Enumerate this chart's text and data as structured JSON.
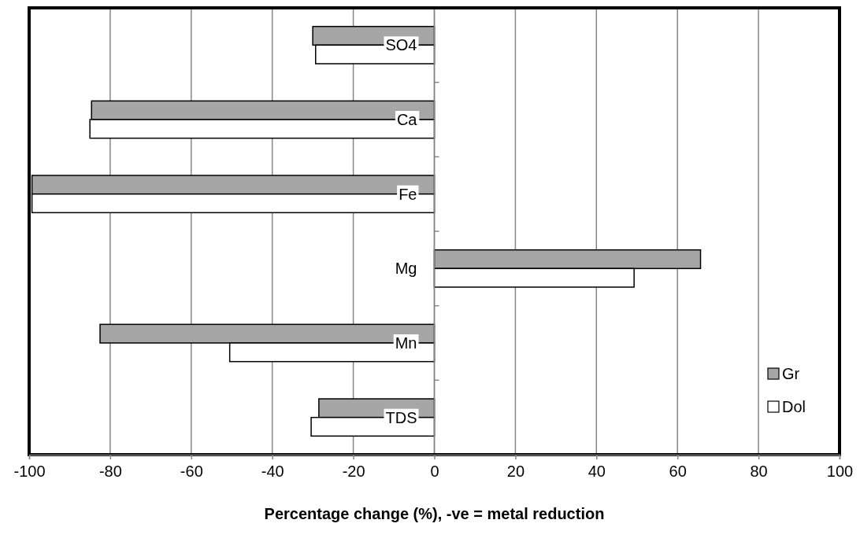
{
  "chart_data": {
    "type": "bar",
    "orientation": "horizontal",
    "xlabel": "Percentage change (%), -ve = metal reduction",
    "categories": [
      "SO4",
      "Ca",
      "Fe",
      "Mg",
      "Mn",
      "TDS"
    ],
    "series": [
      {
        "name": "Gr",
        "color": "#a6a6a6",
        "values": [
          -30,
          -84.6,
          -99.3,
          65.7,
          -82.5,
          -28.5
        ]
      },
      {
        "name": "Dol",
        "color": "#ffffff",
        "values": [
          -29.3,
          -85,
          -99.3,
          49.3,
          -50.5,
          -30.4
        ]
      }
    ],
    "xlim": [
      -100,
      100
    ],
    "xticks": [
      -100,
      -80,
      -60,
      -40,
      -20,
      0,
      20,
      40,
      60,
      80,
      100
    ],
    "grid": "x",
    "legend": "bottom right"
  }
}
